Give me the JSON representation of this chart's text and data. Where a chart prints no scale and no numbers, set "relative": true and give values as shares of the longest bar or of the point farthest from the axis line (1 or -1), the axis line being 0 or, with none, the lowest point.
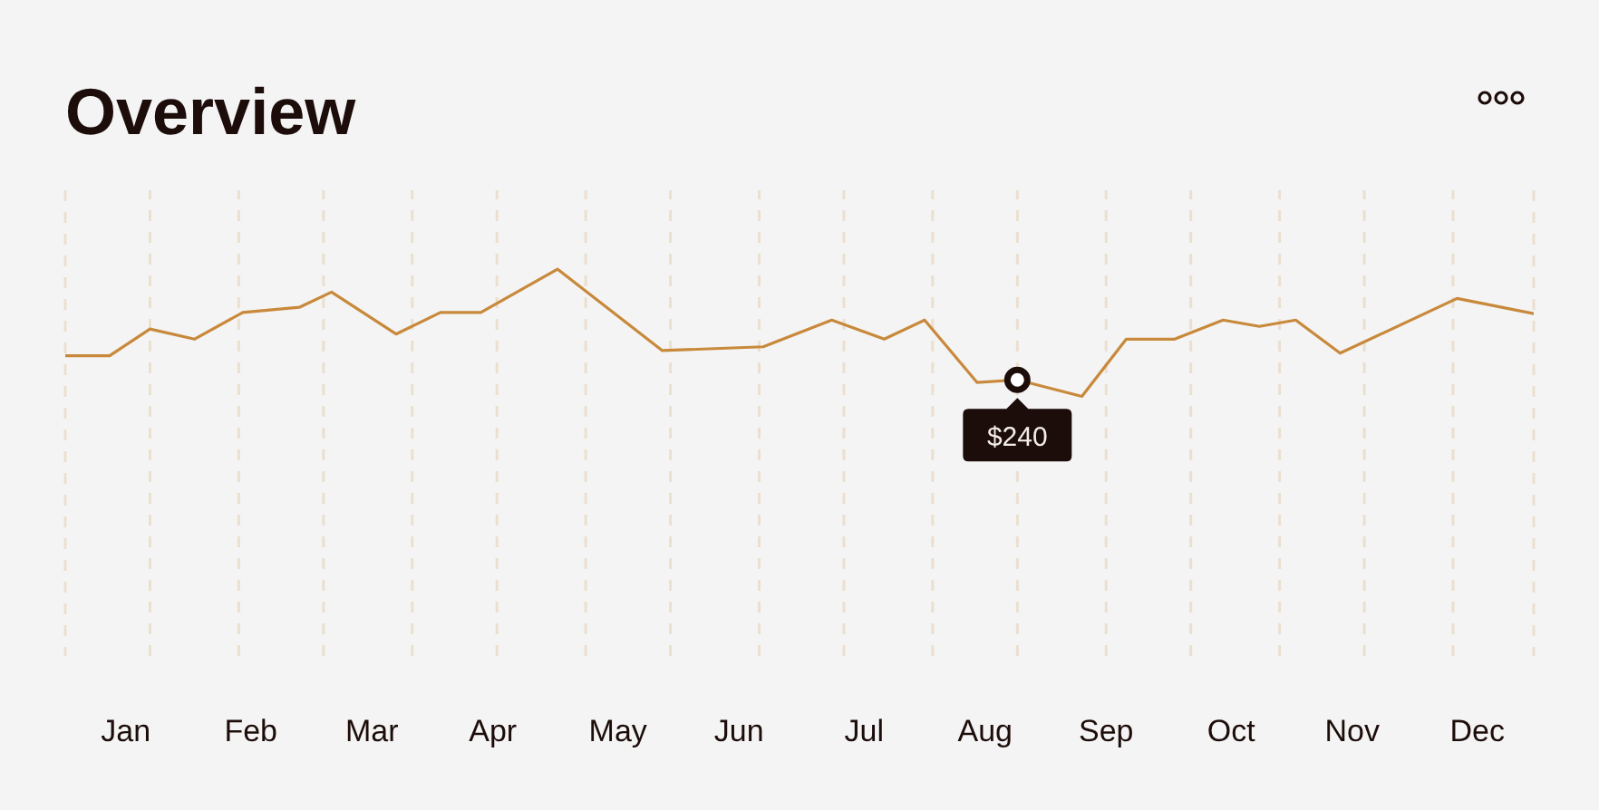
{
  "chart_data": {
    "type": "line",
    "title": "Overview",
    "relative": true,
    "x": [
      "--01-01",
      "--01-12",
      "--01-22",
      "--02-02",
      "--02-14",
      "--02-28",
      "--03-08",
      "--03-24",
      "--04-04",
      "--04-14",
      "--05-03",
      "--05-29",
      "--06-23",
      "--07-10",
      "--07-23",
      "--08-02",
      "--08-15",
      "--08-25",
      "--09-10",
      "--09-21",
      "--10-03",
      "--10-15",
      "--10-24",
      "--11-02",
      "--11-13",
      "--12-12",
      "--12-31"
    ],
    "values": [
      0.32,
      0.32,
      0.53,
      0.45,
      0.66,
      0.7,
      0.82,
      0.49,
      0.66,
      0.66,
      1,
      0.36,
      0.39,
      0.6,
      0.45,
      0.6,
      0.11,
      0.13,
      0,
      0.45,
      0.45,
      0.6,
      0.55,
      0.6,
      0.34,
      0.77,
      0.65
    ],
    "color": "#c8893b",
    "xlim": [
      "--01-01",
      "--12-31"
    ],
    "xticks": [
      {
        "value": "--01-16",
        "label": "Jan"
      },
      {
        "value": "--02-16",
        "label": "Feb"
      },
      {
        "value": "--03-18",
        "label": "Mar"
      },
      {
        "value": "--04-17",
        "label": "Apr"
      },
      {
        "value": "--05-18",
        "label": "May"
      },
      {
        "value": "--06-17",
        "label": "Jun"
      },
      {
        "value": "--07-18",
        "label": "Jul"
      },
      {
        "value": "--08-17",
        "label": "Aug"
      },
      {
        "value": "--09-16",
        "label": "Sep"
      },
      {
        "value": "--10-17",
        "label": "Oct"
      },
      {
        "value": "--11-16",
        "label": "Nov"
      },
      {
        "value": "--12-17",
        "label": "Dec"
      }
    ],
    "ref_lines": [
      {
        "axis": "x",
        "value": "--01-22",
        "color": "#ebdfcf",
        "line_style": "dashed"
      },
      {
        "axis": "x",
        "value": "--02-13",
        "color": "#ebdfcf",
        "line_style": "dashed"
      },
      {
        "axis": "x",
        "value": "--03-06",
        "color": "#ebdfcf",
        "line_style": "dashed"
      },
      {
        "axis": "x",
        "value": "--03-28",
        "color": "#ebdfcf",
        "line_style": "dashed"
      },
      {
        "axis": "x",
        "value": "--04-18",
        "color": "#ebdfcf",
        "line_style": "dashed"
      },
      {
        "axis": "x",
        "value": "--05-10",
        "color": "#ebdfcf",
        "line_style": "dashed"
      },
      {
        "axis": "x",
        "value": "--05-31",
        "color": "#ebdfcf",
        "line_style": "dashed"
      },
      {
        "axis": "x",
        "value": "--06-22",
        "color": "#ebdfcf",
        "line_style": "dashed"
      },
      {
        "axis": "x",
        "value": "--07-13",
        "color": "#ebdfcf",
        "line_style": "dashed"
      },
      {
        "axis": "x",
        "value": "--08-04",
        "color": "#ebdfcf",
        "line_style": "dashed"
      },
      {
        "axis": "x",
        "value": "--08-25",
        "color": "#ebdfcf",
        "line_style": "dashed"
      },
      {
        "axis": "x",
        "value": "--09-16",
        "color": "#ebdfcf",
        "line_style": "dashed"
      },
      {
        "axis": "x",
        "value": "--10-07",
        "color": "#ebdfcf",
        "line_style": "dashed"
      },
      {
        "axis": "x",
        "value": "--10-29",
        "color": "#ebdfcf",
        "line_style": "dashed"
      },
      {
        "axis": "x",
        "value": "--11-19",
        "color": "#ebdfcf",
        "line_style": "dashed"
      },
      {
        "axis": "x",
        "value": "--12-11",
        "color": "#ebdfcf",
        "line_style": "dashed"
      }
    ],
    "annotations": [
      {
        "text": "$240",
        "x": "--08-25",
        "y": 0.13
      }
    ]
  }
}
